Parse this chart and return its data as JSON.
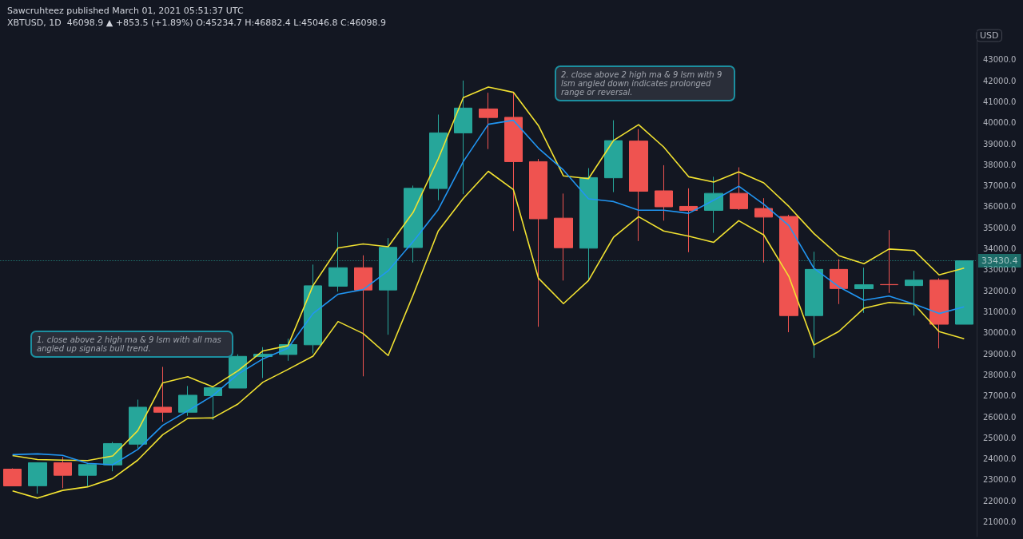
{
  "chart_data": {
    "type": "candlestick",
    "title": "Sawcruhteez published March 01, 2021 05:51:37 UTC",
    "subtitle": "XBTUSD, 1D  46098.9 ▲ +853.5 (+1.89%) O:45234.7 H:46882.4 L:45046.8 C:46098.9",
    "ylabel": "USD",
    "categories": [
      null,
      null,
      null,
      null,
      null,
      null,
      null,
      null,
      null,
      null,
      null,
      null,
      null,
      null,
      null,
      null,
      null,
      null,
      null,
      null,
      null,
      null,
      null,
      null,
      null,
      null,
      null,
      null,
      null,
      null,
      null,
      null,
      null,
      null,
      null,
      null,
      null,
      null,
      null
    ],
    "series": [
      {
        "type": "line",
        "color": "#f2e231",
        "values": [
          24160,
          23970,
          23940,
          23920,
          24140,
          25340,
          27620,
          27910,
          27430,
          28190,
          29140,
          29390,
          32250,
          34040,
          34230,
          34100,
          35740,
          38280,
          41200,
          41700,
          41450,
          39870,
          37470,
          37340,
          39160,
          39910,
          38850,
          37430,
          37180,
          37660,
          37140,
          36020,
          34730,
          33670,
          33290,
          33990,
          33920,
          32760,
          33080
        ]
      },
      {
        "type": "line",
        "color": "#f2e231",
        "values": [
          22480,
          22130,
          22500,
          22670,
          23070,
          23940,
          25150,
          25930,
          25950,
          26610,
          27650,
          28260,
          28890,
          30540,
          29970,
          28920,
          31810,
          34850,
          36400,
          37690,
          36820,
          32600,
          31390,
          32490,
          34550,
          35530,
          34850,
          34600,
          34310,
          35340,
          34660,
          32690,
          29420,
          30070,
          31170,
          31450,
          31370,
          30060,
          29720
        ]
      },
      {
        "type": "line",
        "color": "#2196f3",
        "values": [
          24200,
          24240,
          24170,
          23790,
          23720,
          24450,
          25600,
          26290,
          27010,
          28030,
          28760,
          29270,
          30920,
          31840,
          32060,
          32950,
          34350,
          35870,
          38150,
          39930,
          40120,
          38790,
          37750,
          36380,
          36250,
          35840,
          35840,
          35690,
          36310,
          36980,
          36120,
          35110,
          33080,
          32190,
          31550,
          31750,
          31370,
          30920,
          31240
        ]
      },
      {
        "type": "candlestick",
        "ohlc": [
          [
            23512,
            23550,
            22700,
            22713
          ],
          [
            22720,
            23830,
            22344,
            23817
          ],
          [
            23820,
            24095,
            22610,
            23220
          ],
          [
            23220,
            23750,
            22700,
            23730
          ],
          [
            23715,
            24805,
            23410,
            24730
          ],
          [
            24700,
            26820,
            24500,
            26460
          ],
          [
            26460,
            28380,
            25770,
            26220
          ],
          [
            26220,
            27470,
            26050,
            27030
          ],
          [
            27010,
            27390,
            25850,
            27390
          ],
          [
            27370,
            28980,
            27370,
            28880
          ],
          [
            28870,
            29320,
            27850,
            28980
          ],
          [
            28970,
            29720,
            28670,
            29440
          ],
          [
            29430,
            33250,
            29020,
            32240
          ],
          [
            32220,
            34790,
            31960,
            33100
          ],
          [
            33100,
            33690,
            27930,
            32040
          ],
          [
            32040,
            34510,
            29910,
            34070
          ],
          [
            34060,
            37010,
            33350,
            36880
          ],
          [
            36870,
            40390,
            36310,
            39520
          ],
          [
            39520,
            42010,
            36600,
            40700
          ],
          [
            40660,
            41430,
            38750,
            40250
          ],
          [
            40260,
            41460,
            34850,
            38150
          ],
          [
            38150,
            38280,
            30290,
            35430
          ],
          [
            35460,
            36630,
            32490,
            34050
          ],
          [
            34030,
            37840,
            32490,
            37390
          ],
          [
            37380,
            40120,
            36700,
            39150
          ],
          [
            39130,
            39700,
            34370,
            36740
          ],
          [
            36760,
            37980,
            35340,
            36000
          ],
          [
            36020,
            36880,
            33840,
            35830
          ],
          [
            35830,
            37430,
            34760,
            36640
          ],
          [
            36640,
            37880,
            35850,
            35910
          ],
          [
            35920,
            36410,
            33350,
            35510
          ],
          [
            35540,
            35620,
            30030,
            30820
          ],
          [
            30820,
            33860,
            28810,
            33020
          ],
          [
            33020,
            33500,
            31370,
            32110
          ],
          [
            32100,
            33100,
            30950,
            32290
          ],
          [
            32300,
            34890,
            31900,
            32290
          ],
          [
            32250,
            32950,
            30820,
            32510
          ],
          [
            32510,
            32600,
            29260,
            30410
          ],
          [
            30410,
            33440,
            30410,
            33430.4
          ]
        ],
        "colors": [
          "#ef5350",
          "#26a69a",
          "#ef5350",
          "#26a69a",
          "#26a69a",
          "#26a69a",
          "#ef5350",
          "#26a69a",
          "#26a69a",
          "#26a69a",
          "#26a69a",
          "#26a69a",
          "#26a69a",
          "#26a69a",
          "#ef5350",
          "#26a69a",
          "#26a69a",
          "#26a69a",
          "#26a69a",
          "#ef5350",
          "#ef5350",
          "#ef5350",
          "#ef5350",
          "#26a69a",
          "#26a69a",
          "#ef5350",
          "#ef5350",
          "#ef5350",
          "#26a69a",
          "#ef5350",
          "#ef5350",
          "#ef5350",
          "#26a69a",
          "#ef5350",
          "#26a69a",
          "#ef5350",
          "#26a69a",
          "#ef5350",
          "#26a69a"
        ]
      }
    ],
    "ylim": [
      20300,
      44400
    ],
    "yticks": [
      {
        "value": 21000,
        "label": "21000.0"
      },
      {
        "value": 22000,
        "label": "22000.0"
      },
      {
        "value": 23000,
        "label": "23000.0"
      },
      {
        "value": 24000,
        "label": "24000.0"
      },
      {
        "value": 25000,
        "label": "25000.0"
      },
      {
        "value": 26000,
        "label": "26000.0"
      },
      {
        "value": 27000,
        "label": "27000.0"
      },
      {
        "value": 28000,
        "label": "28000.0"
      },
      {
        "value": 29000,
        "label": "29000.0"
      },
      {
        "value": 30000,
        "label": "30000.0"
      },
      {
        "value": 31000,
        "label": "31000.0"
      },
      {
        "value": 32000,
        "label": "32000.0"
      },
      {
        "value": 33000,
        "label": "33000.0"
      },
      {
        "value": 34000,
        "label": "34000.0"
      },
      {
        "value": 35000,
        "label": "35000.0"
      },
      {
        "value": 36000,
        "label": "36000.0"
      },
      {
        "value": 37000,
        "label": "37000.0"
      },
      {
        "value": 38000,
        "label": "38000.0"
      },
      {
        "value": 39000,
        "label": "39000.0"
      },
      {
        "value": 40000,
        "label": "40000.0"
      },
      {
        "value": 41000,
        "label": "41000.0"
      },
      {
        "value": 42000,
        "label": "42000.0"
      },
      {
        "value": 43000,
        "label": "43000.0"
      }
    ],
    "ref_lines": [
      {
        "axis": "y",
        "value": 33430.4,
        "label": "33430.4",
        "color": "#26a69a",
        "line_style": "dotted"
      }
    ],
    "annotations": [
      "1. close above 2 high ma & 9 lsm with all mas angled up signals bull trend.",
      "2. close above 2 high ma & 9 lsm with 9 lsm angled down indicates prolonged range or reversal."
    ],
    "grid": false,
    "tick_labels": "y"
  }
}
